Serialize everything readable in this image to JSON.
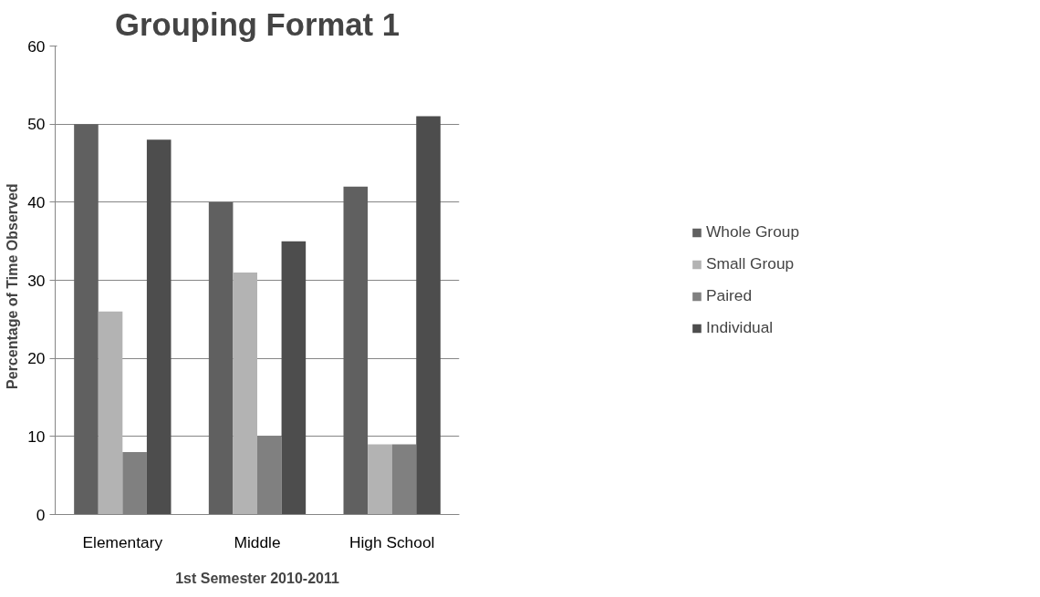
{
  "chart_data": {
    "type": "bar",
    "title": "Grouping Format 1",
    "xlabel": "1st Semester 2010-2011",
    "ylabel": "Percentage  of  Time  Observed",
    "categories": [
      "Elementary",
      "Middle",
      "High School"
    ],
    "series": [
      {
        "name": "Whole Group",
        "color": "#606060",
        "values": [
          50,
          40,
          42
        ]
      },
      {
        "name": "Small Group",
        "color": "#b3b3b3",
        "values": [
          26,
          31,
          9
        ]
      },
      {
        "name": "Paired",
        "color": "#808080",
        "values": [
          8,
          10,
          9
        ]
      },
      {
        "name": "Individual",
        "color": "#4d4d4d",
        "values": [
          48,
          35,
          51
        ]
      }
    ],
    "ylim": [
      0,
      60
    ],
    "yticks": [
      0,
      10,
      20,
      30,
      40,
      50,
      60
    ],
    "grid": "y",
    "legend": "right"
  }
}
